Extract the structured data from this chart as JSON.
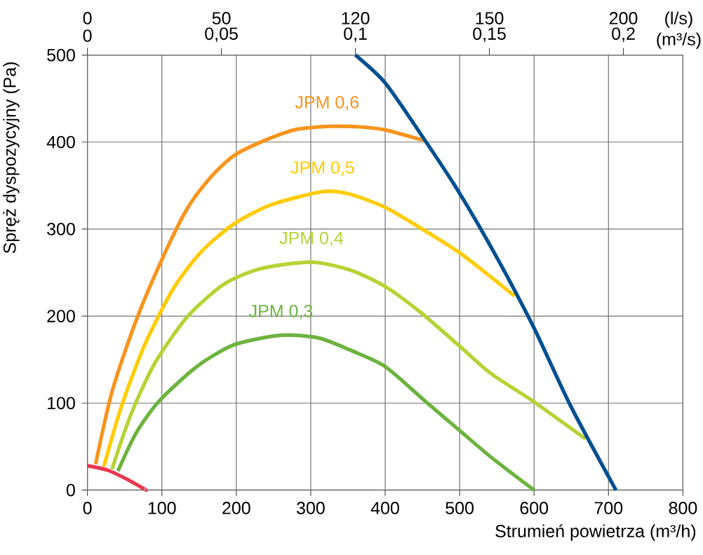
{
  "chart_data": {
    "type": "line",
    "xlabel": "Strumień powietrza (m³/h)",
    "ylabel": "Spręż dyspozycyjny (Pa)",
    "x2label": "(m³/s)",
    "annotations": [
      "0",
      "50",
      "120",
      "150",
      "200",
      "(l/s)"
    ],
    "xlim": [
      0,
      800
    ],
    "xticks": [
      0,
      100,
      200,
      300,
      400,
      500,
      600,
      700,
      800
    ],
    "ylim": [
      0,
      500
    ],
    "yticks": [
      0,
      100,
      200,
      300,
      400,
      500
    ],
    "x2lim": [
      0,
      0.22222
    ],
    "x2ticks": [
      0,
      {
        "value": 0.05,
        "label": "0,05"
      },
      {
        "value": 0.1,
        "label": "0,1"
      },
      {
        "value": 0.15,
        "label": "0,15"
      },
      {
        "value": 0.2,
        "label": "0,2"
      }
    ],
    "grid": true,
    "marker": "none",
    "line_style": "solid",
    "series": [
      {
        "name": "JPM 0,6",
        "color": "#f7941d",
        "x": [
          11,
          33,
          65,
          99,
          133,
          165,
          196,
          233,
          278,
          322,
          353,
          373,
          400,
          448,
          450
        ],
        "values": [
          30,
          113,
          194,
          263,
          322,
          359,
          384,
          400,
          414,
          418,
          418,
          417,
          414,
          403,
          403
        ]
      },
      {
        "name": "JPM 0,5",
        "color": "#ffcc00",
        "x": [
          22,
          46,
          77,
          115,
          153,
          197,
          247,
          316,
          353,
          400,
          448,
          498,
          542,
          574
        ],
        "values": [
          27,
          97,
          167,
          231,
          274,
          306,
          328,
          343,
          340,
          325,
          301,
          274,
          245,
          223
        ]
      },
      {
        "name": "JPM 0,4",
        "color": "#b5d334",
        "x": [
          33,
          58,
          90,
          134,
          184,
          235,
          301,
          353,
          400,
          448,
          498,
          542,
          599,
          669
        ],
        "values": [
          24,
          86,
          145,
          199,
          237,
          255,
          262,
          253,
          234,
          204,
          167,
          134,
          102,
          59
        ]
      },
      {
        "name": "JPM 0,3",
        "color": "#6db33f",
        "x": [
          41,
          65,
          96,
          147,
          197,
          260,
          310,
          353,
          400,
          454,
          498,
          542,
          600
        ],
        "values": [
          22,
          65,
          102,
          142,
          167,
          178,
          175,
          161,
          142,
          102,
          70,
          38,
          0
        ]
      },
      {
        "color": "#004f91",
        "x": [
          360,
          400,
          448,
          498,
          549,
          599,
          649,
          710
        ],
        "values": [
          500,
          468,
          409,
          344,
          269,
          188,
          97,
          0
        ]
      },
      {
        "color": "#e8384f",
        "x": [
          0,
          27,
          52,
          77,
          78
        ],
        "values": [
          28,
          23,
          13,
          1,
          0
        ]
      }
    ]
  }
}
